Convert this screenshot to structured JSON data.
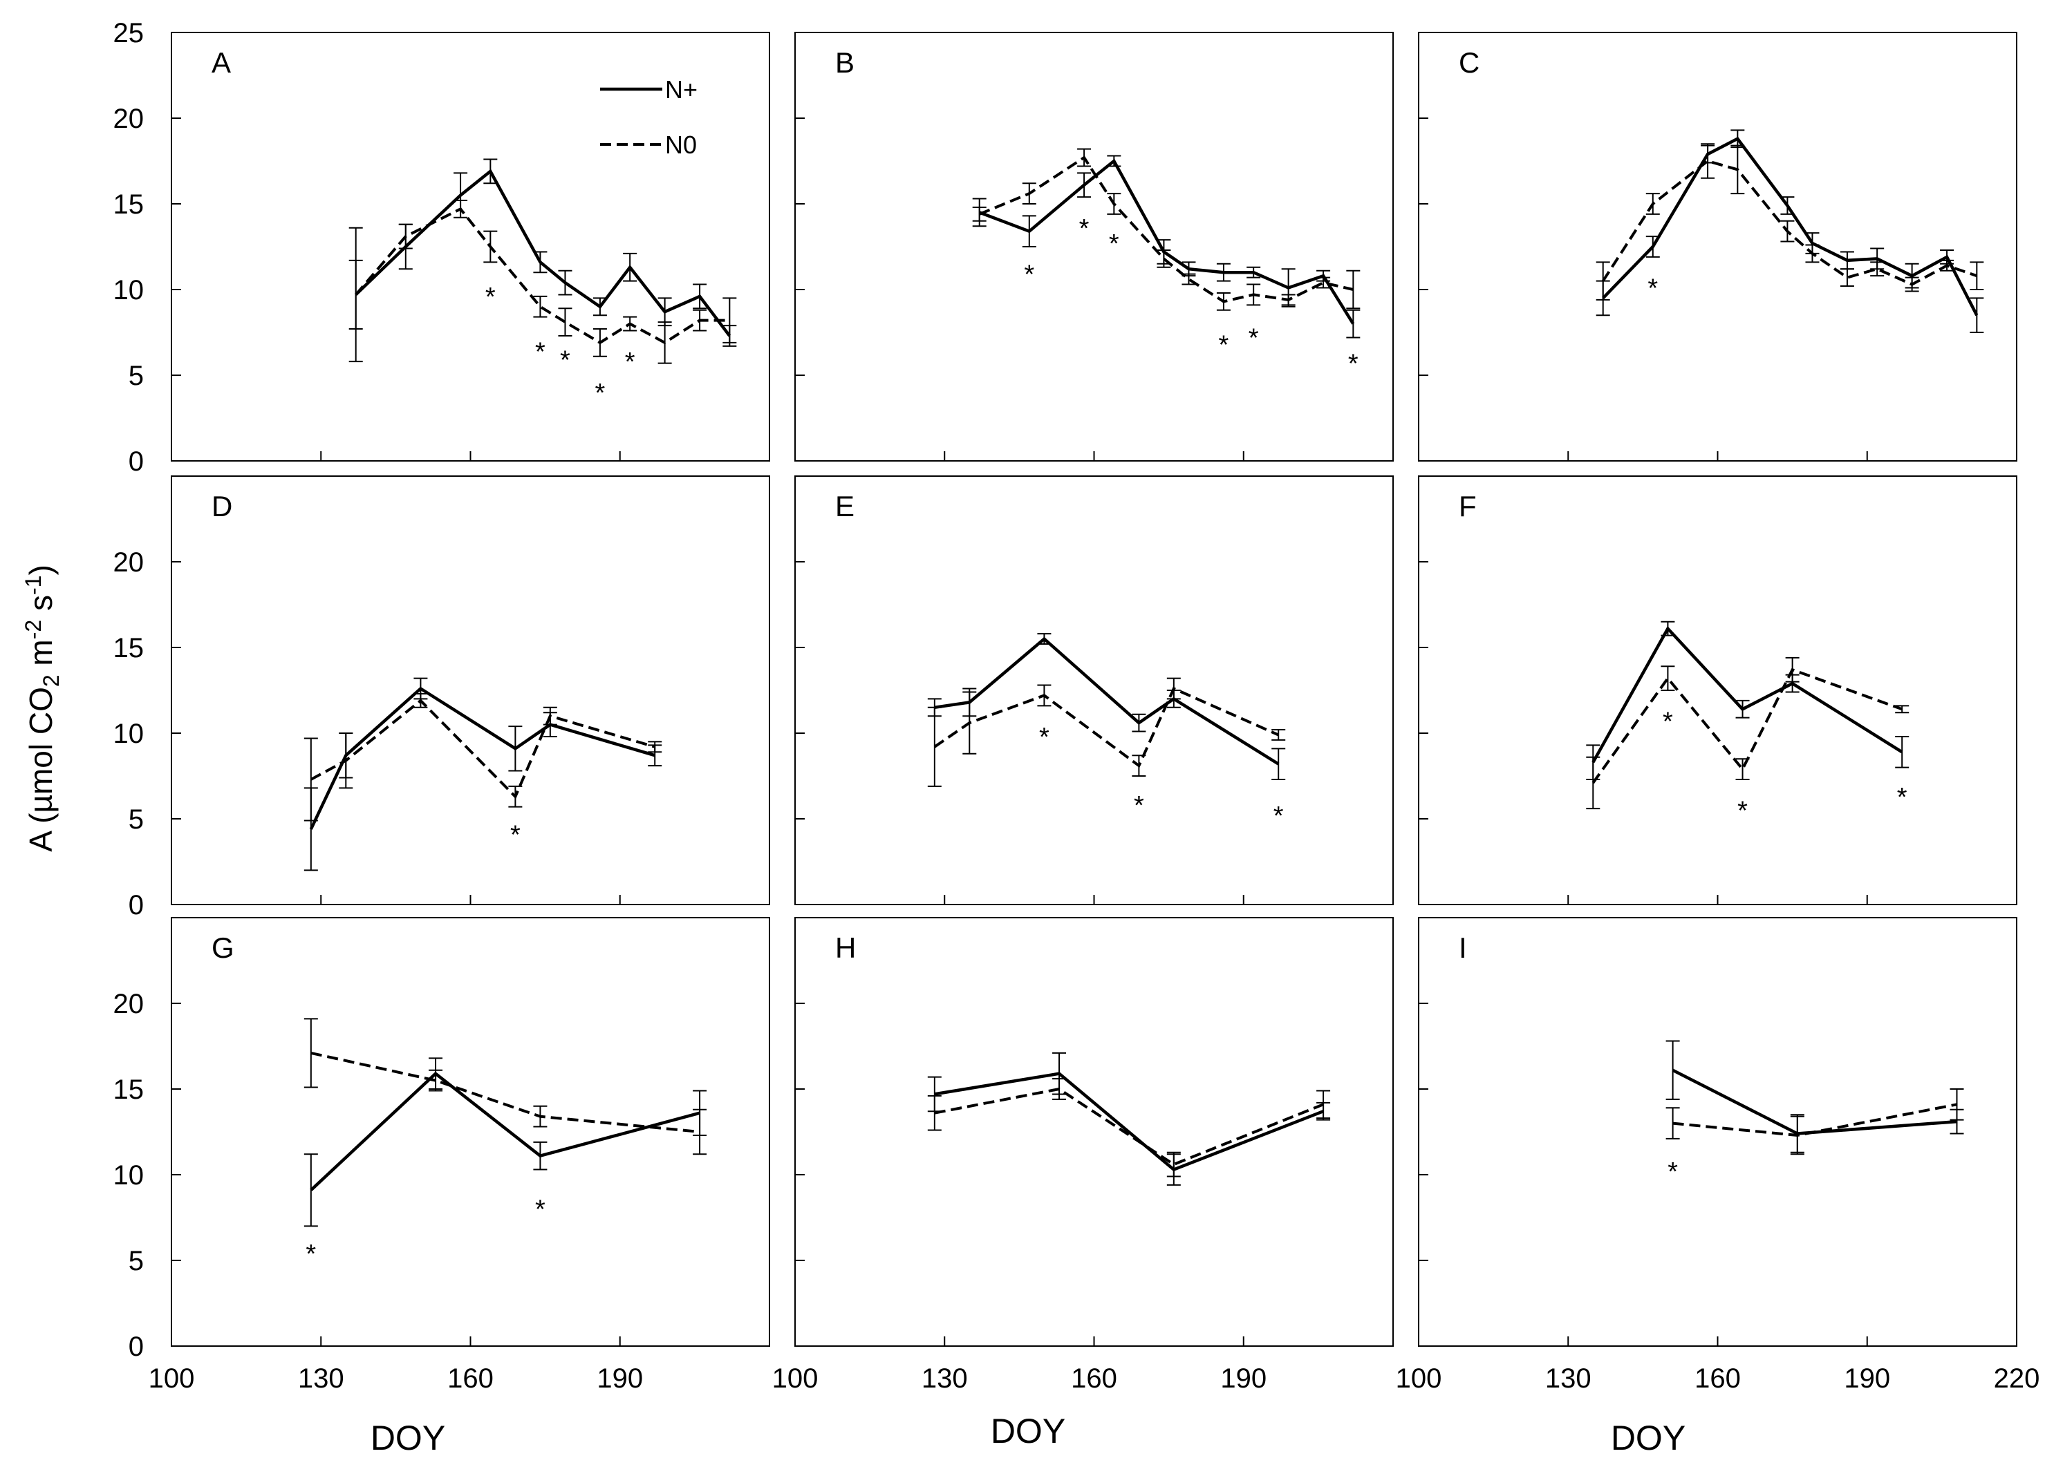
{
  "chart_data": {
    "type": "line",
    "ylabel": {
      "main": "A  (µmol CO",
      "sub2": "2",
      "mid": " m",
      "sup2": "-2",
      "mid2": " s",
      "sup1": "-1",
      "end": ")"
    },
    "xlabel": "DOY",
    "xlim": [
      100,
      220
    ],
    "xticks": [
      "100",
      "130",
      "160",
      "190",
      "220"
    ],
    "xticks_bottom_first": [
      "100",
      "130",
      "160",
      "190"
    ],
    "ylim": [
      0,
      25
    ],
    "yticks_top": [
      "0",
      "5",
      "10",
      "15",
      "20",
      "25"
    ],
    "yticks_mid": [
      "0",
      "5",
      "10",
      "15",
      "20"
    ],
    "yticks_bottom": [
      "0",
      "5",
      "10",
      "15",
      "20"
    ],
    "legend": {
      "position": "top-right of panel A",
      "entries": [
        "N+",
        "N0"
      ]
    },
    "series_styles": {
      "N+": "solid",
      "N0": "dashed"
    },
    "significance_marker": "*",
    "panels": [
      {
        "label": "A",
        "n_plus": [
          [
            137,
            9.7,
            3.9
          ],
          [
            147,
            12.5,
            1.3
          ],
          [
            158,
            15.5,
            1.3
          ],
          [
            164,
            16.9,
            0.7
          ],
          [
            174,
            11.6,
            0.6
          ],
          [
            179,
            10.4,
            0.7
          ],
          [
            186,
            9.0,
            0.5
          ],
          [
            192,
            11.3,
            0.8
          ],
          [
            199,
            8.7,
            0.8
          ],
          [
            206,
            9.6,
            0.7
          ],
          [
            212,
            7.3,
            0.6
          ]
        ],
        "n0": [
          [
            137,
            9.7,
            2.0
          ],
          [
            147,
            13.1,
            0.7
          ],
          [
            158,
            14.7,
            0.5
          ],
          [
            164,
            12.5,
            0.9
          ],
          [
            174,
            9.0,
            0.6
          ],
          [
            179,
            8.1,
            0.8
          ],
          [
            186,
            6.9,
            0.8
          ],
          [
            192,
            8.0,
            0.4
          ],
          [
            199,
            6.9,
            1.2
          ],
          [
            206,
            8.2,
            0.6
          ],
          [
            212,
            8.2,
            1.3
          ]
        ],
        "stars": [
          [
            164,
            9.8
          ],
          [
            174,
            6.6
          ],
          [
            179,
            6.1
          ],
          [
            186,
            4.2
          ],
          [
            192,
            6.0
          ]
        ]
      },
      {
        "label": "B",
        "n_plus": [
          [
            137,
            14.5,
            0.8
          ],
          [
            147,
            13.4,
            0.9
          ],
          [
            158,
            16.1,
            0.7
          ],
          [
            164,
            17.5,
            0.3
          ],
          [
            174,
            12.2,
            0.7
          ],
          [
            179,
            11.2,
            0.4
          ],
          [
            186,
            11.0,
            0.5
          ],
          [
            192,
            11.0,
            0.3
          ],
          [
            199,
            10.1,
            1.1
          ],
          [
            206,
            10.8,
            0.3
          ],
          [
            212,
            8.0,
            0.8
          ]
        ],
        "n0": [
          [
            137,
            14.4,
            0.4
          ],
          [
            147,
            15.6,
            0.6
          ],
          [
            158,
            17.7,
            0.5
          ],
          [
            164,
            15.0,
            0.6
          ],
          [
            174,
            11.8,
            0.5
          ],
          [
            179,
            10.6,
            0.3
          ],
          [
            186,
            9.3,
            0.5
          ],
          [
            192,
            9.7,
            0.6
          ],
          [
            199,
            9.4,
            0.3
          ],
          [
            206,
            10.4,
            0.3
          ],
          [
            212,
            10.0,
            1.1
          ]
        ],
        "stars": [
          [
            147,
            11.1
          ],
          [
            158,
            13.8
          ],
          [
            164,
            12.9
          ],
          [
            186,
            7.0
          ],
          [
            192,
            7.4
          ],
          [
            212,
            5.9
          ]
        ]
      },
      {
        "label": "C",
        "n_plus": [
          [
            137,
            9.5,
            1.0
          ],
          [
            147,
            12.5,
            0.6
          ],
          [
            158,
            17.9,
            0.5
          ],
          [
            164,
            18.8,
            0.5
          ],
          [
            174,
            14.9,
            0.5
          ],
          [
            179,
            12.7,
            0.6
          ],
          [
            186,
            11.7,
            0.5
          ],
          [
            192,
            11.8,
            0.6
          ],
          [
            199,
            10.8,
            0.7
          ],
          [
            206,
            11.9,
            0.4
          ],
          [
            212,
            8.5,
            1.0
          ]
        ],
        "n0": [
          [
            137,
            10.5,
            1.1
          ],
          [
            147,
            15.0,
            0.6
          ],
          [
            158,
            17.5,
            1.0
          ],
          [
            164,
            17.0,
            1.4
          ],
          [
            174,
            13.4,
            0.6
          ],
          [
            179,
            12.1,
            0.5
          ],
          [
            186,
            10.7,
            0.5
          ],
          [
            192,
            11.2,
            0.4
          ],
          [
            199,
            10.3,
            0.4
          ],
          [
            206,
            11.4,
            0.3
          ],
          [
            212,
            10.8,
            0.8
          ]
        ],
        "stars": [
          [
            147,
            10.3
          ]
        ]
      },
      {
        "label": "D",
        "n_plus": [
          [
            128,
            4.4,
            2.4
          ],
          [
            135,
            8.7,
            1.3
          ],
          [
            150,
            12.6,
            0.6
          ],
          [
            169,
            9.1,
            1.3
          ],
          [
            176,
            10.5,
            0.7
          ],
          [
            197,
            8.7,
            0.6
          ]
        ],
        "n0": [
          [
            128,
            7.3,
            2.4
          ],
          [
            135,
            8.4,
            1.6
          ],
          [
            150,
            11.9,
            0.4
          ],
          [
            169,
            6.3,
            0.6
          ],
          [
            176,
            11.0,
            0.5
          ],
          [
            197,
            9.2,
            0.3
          ]
        ],
        "stars": [
          [
            169,
            4.3
          ]
        ]
      },
      {
        "label": "E",
        "n_plus": [
          [
            128,
            11.5,
            0.5
          ],
          [
            135,
            11.8,
            0.8
          ],
          [
            150,
            15.5,
            0.3
          ],
          [
            169,
            10.6,
            0.5
          ],
          [
            176,
            12.0,
            0.5
          ],
          [
            197,
            8.2,
            0.9
          ]
        ],
        "n0": [
          [
            128,
            9.2,
            2.3
          ],
          [
            135,
            10.6,
            1.8
          ],
          [
            150,
            12.2,
            0.6
          ],
          [
            169,
            8.1,
            0.6
          ],
          [
            176,
            12.6,
            0.6
          ],
          [
            197,
            9.9,
            0.3
          ]
        ],
        "stars": [
          [
            150,
            10.0
          ],
          [
            169,
            6.0
          ],
          [
            197,
            5.4
          ]
        ]
      },
      {
        "label": "F",
        "n_plus": [
          [
            135,
            8.3,
            1.0
          ],
          [
            150,
            16.1,
            0.4
          ],
          [
            165,
            11.4,
            0.5
          ],
          [
            175,
            12.9,
            0.5
          ],
          [
            197,
            8.9,
            0.9
          ]
        ],
        "n0": [
          [
            135,
            7.1,
            1.5
          ],
          [
            150,
            13.2,
            0.7
          ],
          [
            165,
            7.9,
            0.6
          ],
          [
            175,
            13.7,
            0.7
          ],
          [
            197,
            11.4,
            0.2
          ]
        ],
        "stars": [
          [
            150,
            10.9
          ],
          [
            165,
            5.7
          ],
          [
            197,
            6.5
          ]
        ]
      },
      {
        "label": "G",
        "n_plus": [
          [
            128,
            9.1,
            2.1
          ],
          [
            153,
            15.9,
            0.9
          ],
          [
            174,
            11.1,
            0.8
          ],
          [
            206,
            13.6,
            1.3
          ]
        ],
        "n0": [
          [
            128,
            17.1,
            2.0
          ],
          [
            153,
            15.5,
            0.6
          ],
          [
            174,
            13.4,
            0.6
          ],
          [
            206,
            12.5,
            1.3
          ]
        ],
        "stars": [
          [
            128,
            5.6
          ],
          [
            174,
            8.2
          ]
        ]
      },
      {
        "label": "H",
        "n_plus": [
          [
            128,
            14.7,
            1.0
          ],
          [
            153,
            15.9,
            1.2
          ],
          [
            176,
            10.3,
            0.9
          ],
          [
            206,
            13.7,
            0.5
          ]
        ],
        "n0": [
          [
            128,
            13.6,
            1.0
          ],
          [
            153,
            15.0,
            0.6
          ],
          [
            176,
            10.6,
            0.7
          ],
          [
            206,
            14.1,
            0.8
          ]
        ],
        "stars": []
      },
      {
        "label": "I",
        "n_plus": [
          [
            151,
            16.1,
            1.7
          ],
          [
            176,
            12.4,
            1.1
          ],
          [
            208,
            13.1,
            0.7
          ]
        ],
        "n0": [
          [
            151,
            13.0,
            0.9
          ],
          [
            176,
            12.3,
            1.1
          ],
          [
            208,
            14.1,
            0.9
          ]
        ],
        "stars": [
          [
            151,
            10.4
          ]
        ]
      }
    ]
  }
}
